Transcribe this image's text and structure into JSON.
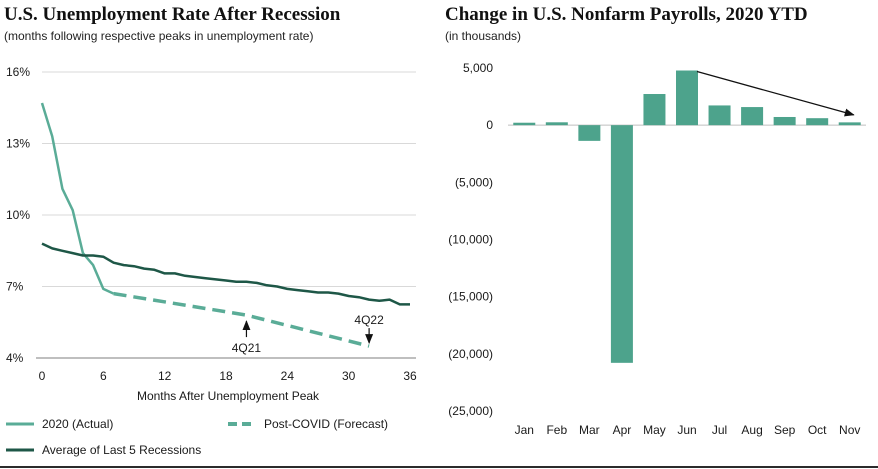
{
  "chart_data": [
    {
      "type": "line",
      "title": "U.S. Unemployment Rate After Recession",
      "subtitle": "(months following respective peaks in unemployment rate)",
      "xlabel": "Months After Unemployment Peak",
      "ylabel": "",
      "xlim": [
        0,
        36
      ],
      "ylim": [
        4,
        16
      ],
      "x_ticks": [
        0,
        6,
        12,
        18,
        24,
        30,
        36
      ],
      "y_ticks": [
        4,
        7,
        10,
        13,
        16
      ],
      "y_tick_labels": [
        "4%",
        "7%",
        "10%",
        "13%",
        "16%"
      ],
      "grid": true,
      "series": [
        {
          "name": "2020 (Actual)",
          "color": "#5aac97",
          "style": "solid",
          "x": [
            0,
            1,
            2,
            3,
            4,
            5,
            6,
            7
          ],
          "values": [
            14.7,
            13.3,
            11.1,
            10.2,
            8.4,
            7.9,
            6.9,
            6.7
          ]
        },
        {
          "name": "Post-COVID (Forecast)",
          "color": "#5aac97",
          "style": "dashed",
          "x": [
            7,
            20,
            32
          ],
          "values": [
            6.7,
            5.8,
            4.5
          ]
        },
        {
          "name": "Average of Last 5 Recessions",
          "color": "#1e5747",
          "style": "solid",
          "x": [
            0,
            1,
            2,
            3,
            4,
            5,
            6,
            7,
            8,
            9,
            10,
            11,
            12,
            13,
            14,
            15,
            16,
            17,
            18,
            19,
            20,
            21,
            22,
            23,
            24,
            25,
            26,
            27,
            28,
            29,
            30,
            31,
            32,
            33,
            34,
            35,
            36
          ],
          "values": [
            8.8,
            8.6,
            8.5,
            8.4,
            8.3,
            8.3,
            8.25,
            8.0,
            7.9,
            7.85,
            7.75,
            7.7,
            7.55,
            7.55,
            7.45,
            7.4,
            7.35,
            7.3,
            7.25,
            7.2,
            7.2,
            7.15,
            7.05,
            7.0,
            6.9,
            6.85,
            6.8,
            6.75,
            6.75,
            6.7,
            6.6,
            6.55,
            6.45,
            6.4,
            6.45,
            6.25,
            6.25
          ]
        }
      ],
      "annotations": [
        {
          "text": "4Q21",
          "x": 20,
          "y": 5.8,
          "arrow": "up"
        },
        {
          "text": "4Q22",
          "x": 32,
          "y": 4.5,
          "arrow": "down"
        }
      ],
      "legend": "bottom"
    },
    {
      "type": "bar",
      "title": "Change in U.S. Nonfarm Payrolls, 2020 YTD",
      "subtitle": "(in thousands)",
      "xlabel": "",
      "ylabel": "",
      "categories": [
        "Jan",
        "Feb",
        "Mar",
        "Apr",
        "May",
        "Jun",
        "Jul",
        "Aug",
        "Sep",
        "Oct",
        "Nov"
      ],
      "values": [
        214,
        251,
        -1373,
        -20787,
        2725,
        4781,
        1726,
        1583,
        716,
        610,
        245
      ],
      "ylim": [
        -25000,
        5000
      ],
      "y_ticks": [
        -25000,
        -20000,
        -15000,
        -10000,
        -5000,
        0,
        5000
      ],
      "y_tick_labels": [
        "(25,000)",
        "(20,000)",
        "(15,000)",
        "(10,000)",
        "(5,000)",
        "0",
        "5,000"
      ],
      "color": "#4da38c",
      "grid": false,
      "annotations": [
        {
          "type": "trend-arrow",
          "from_category": "Jun",
          "from_value": 4781,
          "to_category": "Nov",
          "to_value": 900
        }
      ]
    }
  ]
}
